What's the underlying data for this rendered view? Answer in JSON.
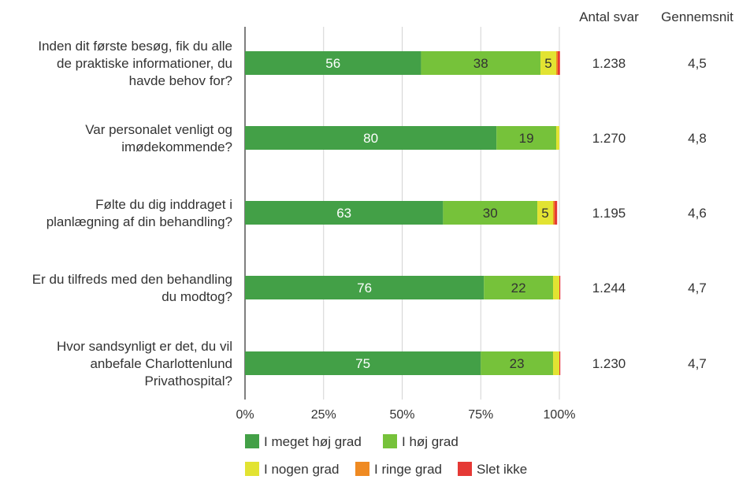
{
  "chart_data": {
    "type": "bar",
    "orientation": "horizontal",
    "stacked": true,
    "questions": [
      [
        "Inden dit første besøg, fik du alle",
        "de praktiske informationer, du",
        "havde behov for?"
      ],
      [
        "Var personalet venligt og",
        "imødekommende?"
      ],
      [
        "Følte du dig inddraget i",
        "planlægning af din behandling?"
      ],
      [
        "Er du tilfreds med den behandling",
        "du modtog?"
      ],
      [
        "Hvor sandsynligt er det, du vil",
        "anbefale Charlottenlund",
        "Privathospital?"
      ]
    ],
    "series": [
      {
        "name": "I meget høj grad",
        "color": "#43a047",
        "text_color": "#ffffff",
        "values": [
          56,
          80,
          63,
          76,
          75
        ],
        "labels": [
          "56",
          "80",
          "63",
          "76",
          "75"
        ]
      },
      {
        "name": "I høj grad",
        "color": "#76c23a",
        "text_color": "#333333",
        "values": [
          38,
          19,
          30,
          22,
          23
        ],
        "labels": [
          "38",
          "19",
          "30",
          "22",
          "23"
        ]
      },
      {
        "name": "I nogen grad",
        "color": "#e2e332",
        "text_color": "#333333",
        "values": [
          5,
          1,
          5,
          2,
          2
        ],
        "labels": [
          "5",
          "",
          "5",
          "",
          ""
        ]
      },
      {
        "name": "I ringe grad",
        "color": "#ef8a22",
        "text_color": "#333333",
        "values": [
          0.5,
          0,
          0.5,
          0,
          0
        ],
        "labels": [
          "",
          "",
          "",
          "",
          ""
        ]
      },
      {
        "name": "Slet ikke",
        "color": "#e53935",
        "text_color": "#333333",
        "values": [
          0.7,
          0,
          0.8,
          0.3,
          0.3
        ],
        "labels": [
          "",
          "",
          "",
          "",
          ""
        ]
      }
    ],
    "x_ticks": [
      "0%",
      "25%",
      "50%",
      "75%",
      "100%"
    ],
    "xlim": [
      0,
      100
    ],
    "grid": true,
    "legend_position": "bottom-left",
    "columns": {
      "headers": [
        "Antal svar",
        "Gennemsnit"
      ],
      "antal_svar": [
        "1.238",
        "1.270",
        "1.195",
        "1.244",
        "1.230"
      ],
      "gennemsnit": [
        "4,5",
        "4,8",
        "4,6",
        "4,7",
        "4,7"
      ]
    }
  }
}
